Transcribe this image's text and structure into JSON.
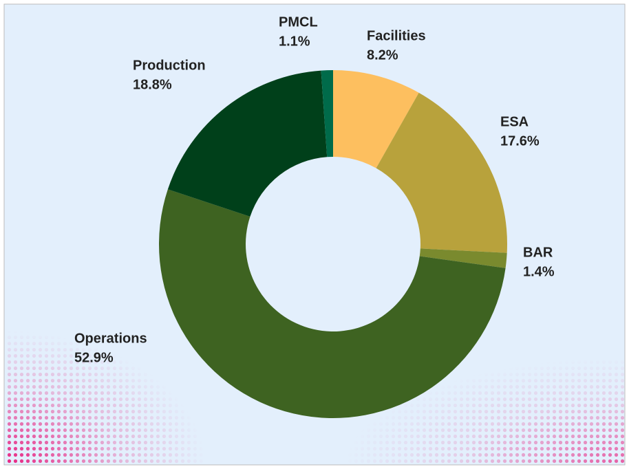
{
  "chart_data": {
    "type": "donut",
    "categories": [
      "Facilities",
      "ESA",
      "BAR",
      "Operations",
      "Production",
      "PMCL"
    ],
    "values": [
      8.2,
      17.6,
      1.4,
      52.9,
      18.8,
      1.1
    ],
    "value_labels": [
      "8.2%",
      "17.6%",
      "1.4%",
      "52.9%",
      "18.8%",
      "1.1%"
    ],
    "colors": [
      "#fdbf5f",
      "#b8a23c",
      "#7a8a2e",
      "#3e6321",
      "#00401a",
      "#006b4a"
    ]
  }
}
